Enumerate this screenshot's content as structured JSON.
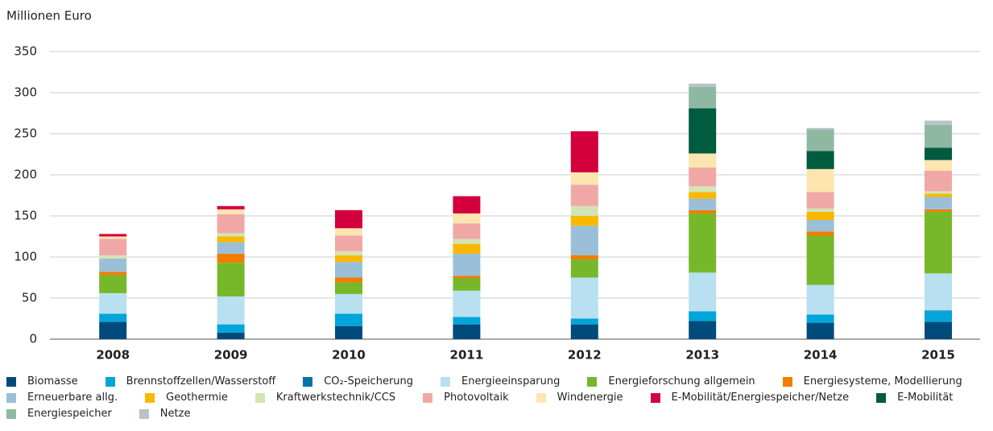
{
  "chart_data": {
    "type": "stacked-bar",
    "y_label": "Millionen Euro",
    "categories": [
      "2008",
      "2009",
      "2010",
      "2011",
      "2012",
      "2013",
      "2014",
      "2015"
    ],
    "ylim": [
      0,
      350
    ],
    "yticks": [
      0,
      50,
      100,
      150,
      200,
      250,
      300,
      350
    ],
    "grid": true,
    "series": [
      {
        "name": "Biomasse",
        "color": "#004b7c",
        "values": [
          21,
          8,
          16,
          18,
          18,
          22,
          20,
          21
        ]
      },
      {
        "name": "Brennstoffzellen/Wasserstoff",
        "color": "#00a5d9",
        "values": [
          10,
          10,
          15,
          9,
          7,
          12,
          10,
          13
        ]
      },
      {
        "name": "CO₂-Speicherung",
        "color": "#0077a3",
        "values": [
          0,
          0,
          0,
          0,
          0,
          0,
          0,
          1
        ]
      },
      {
        "name": "Energieeinsparung",
        "color": "#b8e0f0",
        "values": [
          25,
          34,
          24,
          32,
          50,
          47,
          36,
          45
        ]
      },
      {
        "name": "Energieforschung allgemein",
        "color": "#76b82a",
        "values": [
          22,
          41,
          14,
          15,
          22,
          72,
          60,
          75
        ]
      },
      {
        "name": "Energiesysteme, Modellierung",
        "color": "#f07d00",
        "values": [
          4,
          11,
          6,
          3,
          5,
          4,
          5,
          3
        ]
      },
      {
        "name": "Erneuerbare allg.",
        "color": "#9bbfd9",
        "values": [
          16,
          14,
          19,
          27,
          36,
          14,
          14,
          15
        ]
      },
      {
        "name": "Geothermie",
        "color": "#f9b800",
        "values": [
          0,
          7,
          8,
          12,
          12,
          8,
          10,
          4
        ]
      },
      {
        "name": "Kraftwerkstechnik/CCS",
        "color": "#d3e4b5",
        "values": [
          4,
          4,
          5,
          6,
          12,
          7,
          4,
          3
        ]
      },
      {
        "name": "Photovoltaik",
        "color": "#f0a8a6",
        "values": [
          20,
          23,
          19,
          19,
          26,
          23,
          20,
          25
        ]
      },
      {
        "name": "Windenergie",
        "color": "#fde5b0",
        "values": [
          3,
          6,
          9,
          12,
          15,
          17,
          28,
          13
        ]
      },
      {
        "name": "E-Mobilität/Energiespeicher/Netze",
        "color": "#d4003e",
        "values": [
          3,
          4,
          22,
          21,
          50,
          0,
          0,
          0
        ]
      },
      {
        "name": "E-Mobilität",
        "color": "#005b3f",
        "values": [
          0,
          0,
          0,
          0,
          0,
          55,
          22,
          15
        ]
      },
      {
        "name": "Energiespeicher",
        "color": "#8fb8a3",
        "values": [
          0,
          0,
          0,
          0,
          0,
          26,
          26,
          28
        ]
      },
      {
        "name": "Netze",
        "color": "#b7c3ca",
        "values": [
          0,
          0,
          0,
          0,
          0,
          4,
          2,
          5
        ]
      }
    ]
  }
}
